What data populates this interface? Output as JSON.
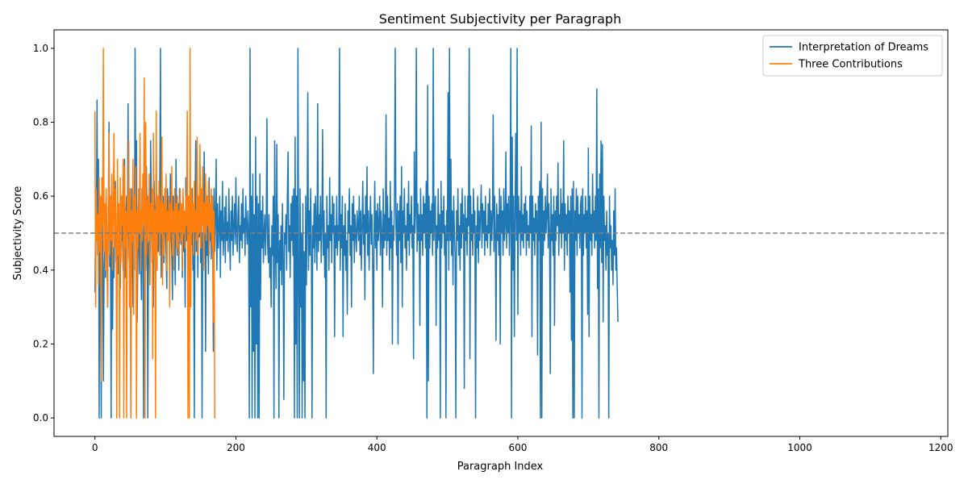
{
  "chart_data": {
    "type": "line",
    "title": "Sentiment Subjectivity per Paragraph",
    "xlabel": "Paragraph Index",
    "ylabel": "Subjectivity Score",
    "xlim": [
      -58,
      1210
    ],
    "ylim": [
      -0.05,
      1.05
    ],
    "xticks": [
      0,
      200,
      400,
      600,
      800,
      1000,
      1200
    ],
    "yticks": [
      0.0,
      0.2,
      0.4,
      0.6,
      0.8,
      1.0
    ],
    "reference_line": {
      "y": 0.5,
      "style": "dashed",
      "color": "#808080"
    },
    "legend": {
      "position": "top-right"
    },
    "series": [
      {
        "name": "Interpretation of Dreams",
        "color": "#1f77b4",
        "x_start": 0,
        "step": 1,
        "values": [
          0.34,
          0.55,
          0.48,
          0.86,
          0.44,
          0.7,
          0.0,
          0.58,
          0.3,
          0.0,
          0.65,
          0.45,
          0.1,
          0.4,
          0.52,
          0.38,
          0.6,
          0.45,
          0.3,
          0.55,
          0.8,
          0.41,
          0.5,
          0.0,
          0.58,
          0.24,
          0.46,
          0.38,
          0.52,
          0.64,
          0.42,
          0.5,
          0.47,
          0.39,
          0.56,
          0.44,
          0.35,
          0.6,
          0.48,
          0.52,
          0.4,
          0.45,
          0.7,
          0.38,
          0.55,
          0.6,
          0.43,
          0.85,
          0.5,
          0.36,
          0.58,
          0.0,
          0.62,
          0.45,
          0.3,
          0.55,
          0.4,
          1.0,
          0.52,
          0.75,
          0.26,
          0.48,
          0.6,
          0.39,
          0.56,
          0.44,
          0.32,
          0.62,
          0.5,
          0.0,
          0.58,
          0.45,
          0.4,
          0.68,
          0.53,
          0.0,
          0.47,
          0.5,
          0.36,
          0.75,
          0.6,
          0.42,
          0.55,
          0.3,
          0.64,
          0.48,
          0.52,
          0.7,
          0.4,
          0.58,
          0.45,
          0.5,
          0.62,
          1.0,
          0.38,
          0.55,
          0.47,
          0.6,
          0.42,
          0.51,
          0.56,
          0.44,
          0.35,
          0.62,
          0.49,
          0.58,
          0.4,
          0.66,
          0.5,
          0.45,
          0.32,
          0.6,
          0.54,
          0.48,
          0.36,
          0.7,
          0.52,
          0.44,
          0.58,
          0.4,
          0.62,
          0.5,
          0.47,
          0.56,
          0.38,
          0.6,
          0.45,
          0.53,
          0.3,
          0.65,
          0.48,
          0.55,
          0.42,
          0.6,
          0.5,
          0.44,
          0.58,
          0.47,
          0.62,
          0.4,
          0.52,
          0.0,
          0.56,
          0.75,
          0.45,
          0.6,
          0.38,
          0.54,
          0.49,
          0.68,
          0.42,
          0.58,
          0.0,
          0.5,
          0.47,
          0.72,
          0.55,
          0.18,
          0.6,
          0.44,
          0.52,
          0.39,
          0.65,
          0.48,
          0.56,
          0.43,
          0.6,
          0.5,
          0.18,
          0.62,
          0.45,
          0.54,
          0.7,
          0.4,
          0.58,
          0.46,
          0.52,
          0.6,
          0.38,
          0.56,
          0.48,
          0.64,
          0.44,
          0.5,
          0.57,
          0.42,
          0.6,
          0.48,
          0.53,
          0.45,
          0.62,
          0.5,
          0.4,
          0.56,
          0.48,
          0.6,
          0.44,
          0.52,
          0.58,
          0.47,
          0.65,
          0.5,
          0.45,
          0.55,
          0.6,
          0.42,
          0.52,
          0.48,
          0.58,
          0.46,
          0.62,
          0.5,
          0.54,
          0.44,
          0.6,
          0.52,
          0.47,
          0.56,
          0.5,
          0.0,
          1.0,
          0.3,
          0.6,
          0.0,
          0.66,
          0.18,
          0.55,
          0.0,
          0.76,
          0.2,
          0.6,
          0.0,
          0.58,
          0.0,
          0.66,
          0.32,
          0.56,
          0.46,
          0.6,
          0.42,
          0.5,
          0.55,
          0.44,
          0.52,
          0.81,
          0.47,
          0.42,
          0.55,
          0.38,
          0.46,
          0.3,
          0.52,
          0.44,
          0.6,
          0.0,
          0.75,
          0.48,
          0.35,
          0.74,
          0.42,
          0.55,
          0.0,
          0.48,
          0.4,
          0.52,
          0.36,
          0.58,
          0.44,
          0.05,
          0.5,
          0.47,
          0.55,
          0.4,
          0.6,
          0.72,
          0.45,
          0.52,
          0.38,
          0.58,
          0.48,
          0.6,
          0.44,
          0.62,
          0.0,
          0.76,
          0.2,
          0.6,
          0.0,
          1.0,
          0.4,
          0.0,
          0.62,
          0.3,
          0.5,
          0.0,
          0.58,
          0.1,
          0.45,
          0.0,
          0.6,
          0.36,
          0.52,
          0.88,
          0.4,
          0.56,
          0.44,
          0.62,
          0.48,
          0.0,
          0.52,
          0.46,
          0.58,
          0.42,
          0.6,
          0.5,
          0.4,
          0.85,
          0.45,
          0.55,
          0.48,
          0.6,
          0.42,
          0.52,
          0.78,
          0.44,
          0.56,
          0.38,
          0.5,
          0.0,
          0.6,
          0.46,
          0.52,
          0.4,
          0.65,
          0.48,
          0.55,
          0.42,
          0.6,
          0.5,
          0.58,
          0.22,
          0.52,
          0.46,
          0.6,
          0.44,
          0.52,
          0.48,
          1.0,
          0.4,
          0.55,
          0.46,
          0.6,
          0.22,
          0.52,
          0.44,
          0.58,
          0.4,
          0.48,
          0.28,
          0.56,
          0.5,
          0.62,
          0.44,
          0.52,
          0.3,
          0.58,
          0.48,
          0.6,
          0.42,
          0.55,
          0.5,
          0.45,
          0.56,
          0.52,
          0.48,
          0.6,
          0.44,
          0.56,
          0.4,
          0.52,
          0.64,
          0.47,
          0.55,
          0.32,
          0.6,
          0.5,
          0.68,
          0.44,
          0.56,
          0.4,
          0.52,
          0.6,
          0.47,
          0.55,
          0.42,
          0.12,
          0.5,
          0.64,
          0.46,
          0.56,
          0.4,
          0.58,
          0.48,
          0.52,
          0.6,
          0.44,
          0.56,
          0.5,
          0.3,
          0.62,
          0.46,
          0.55,
          0.48,
          0.82,
          0.44,
          0.6,
          0.48,
          0.54,
          0.4,
          0.64,
          0.46,
          0.56,
          0.2,
          0.52,
          0.48,
          0.6,
          1.0,
          0.52,
          0.44,
          0.58,
          0.2,
          0.56,
          0.48,
          0.6,
          0.42,
          0.68,
          0.3,
          0.56,
          0.5,
          0.62,
          0.46,
          0.52,
          0.4,
          0.58,
          0.48,
          0.64,
          0.44,
          0.55,
          0.5,
          0.6,
          0.46,
          0.52,
          0.16,
          0.72,
          0.5,
          0.56,
          1.0,
          0.45,
          0.58,
          0.48,
          0.55,
          0.25,
          0.62,
          0.48,
          0.55,
          0.44,
          0.6,
          0.5,
          0.58,
          0.46,
          0.64,
          0.0,
          0.9,
          0.1,
          0.6,
          0.46,
          0.56,
          0.5,
          0.58,
          0.44,
          1.0,
          0.48,
          0.55,
          0.6,
          0.25,
          0.52,
          0.46,
          0.62,
          0.48,
          0.55,
          0.0,
          0.64,
          0.46,
          0.56,
          0.5,
          0.6,
          0.44,
          0.52,
          0.0,
          0.56,
          0.48,
          0.88,
          0.4,
          1.0,
          0.48,
          0.7,
          0.44,
          0.56,
          0.36,
          0.6,
          0.5,
          0.44,
          0.0,
          0.56,
          0.48,
          0.62,
          0.44,
          0.52,
          0.4,
          0.58,
          0.46,
          0.62,
          0.5,
          0.55,
          0.08,
          0.6,
          0.48,
          0.54,
          0.44,
          0.6,
          0.52,
          1.0,
          0.16,
          0.6,
          0.48,
          0.55,
          0.44,
          0.62,
          0.5,
          0.56,
          0.0,
          0.52,
          0.46,
          0.6,
          0.42,
          0.56,
          0.48,
          0.55,
          0.63,
          0.46,
          0.58,
          0.5,
          0.56,
          0.44,
          0.6,
          0.48,
          0.52,
          0.46,
          0.58,
          0.5,
          0.62,
          0.44,
          0.56,
          0.48,
          0.55,
          0.82,
          0.45,
          0.6,
          0.5,
          0.21,
          0.58,
          0.48,
          0.55,
          0.44,
          0.62,
          0.2,
          0.6,
          0.5,
          0.56,
          0.44,
          0.62,
          0.48,
          0.52,
          0.72,
          0.46,
          0.58,
          0.5,
          0.6,
          0.44,
          0.56,
          1.0,
          0.0,
          0.76,
          0.4,
          0.6,
          0.22,
          0.55,
          0.77,
          0.48,
          1.0,
          0.28,
          0.6,
          0.5,
          0.56,
          0.44,
          0.68,
          0.48,
          0.55,
          0.46,
          0.58,
          0.5,
          0.6,
          0.44,
          0.56,
          0.48,
          0.52,
          0.46,
          0.6,
          0.5,
          0.79,
          0.22,
          0.6,
          0.48,
          0.54,
          0.44,
          0.58,
          0.5,
          0.56,
          0.17,
          0.6,
          0.48,
          0.64,
          0.0,
          0.8,
          0.0,
          0.62,
          0.44,
          0.56,
          0.48,
          0.6,
          0.5,
          0.55,
          0.66,
          0.46,
          0.58,
          0.5,
          0.12,
          0.62,
          0.48,
          0.55,
          0.44,
          0.6,
          0.25,
          0.56,
          0.48,
          0.6,
          0.52,
          0.69,
          0.44,
          0.55,
          0.5,
          0.62,
          0.46,
          0.58,
          0.5,
          0.75,
          0.4,
          0.58,
          0.48,
          0.55,
          0.44,
          0.6,
          0.5,
          0.56,
          0.34,
          0.6,
          0.21,
          0.62,
          0.0,
          0.64,
          0.0,
          0.56,
          0.48,
          0.62,
          0.44,
          0.6,
          0.5,
          0.55,
          0.46,
          0.58,
          0.6,
          0.0,
          0.62,
          0.44,
          0.55,
          0.5,
          0.6,
          0.46,
          0.56,
          0.28,
          0.73,
          0.22,
          0.6,
          0.48,
          0.55,
          0.44,
          0.66,
          0.5,
          0.56,
          0.46,
          0.6,
          0.48,
          0.89,
          0.35,
          0.62,
          0.0,
          0.66,
          0.46,
          0.75,
          0.42,
          0.74,
          0.26,
          0.6,
          0.48,
          0.52,
          0.4,
          0.56,
          0.44,
          0.5,
          0.0,
          0.6,
          0.46,
          0.52,
          0.4,
          0.48,
          0.36,
          0.56,
          0.44,
          0.62,
          0.4,
          0.46,
          0.35,
          0.26
        ]
      },
      {
        "name": "Three Contributions",
        "color": "#ff7f0e",
        "x_start": 0,
        "step": 1,
        "values": [
          0.83,
          0.3,
          0.62,
          0.48,
          0.55,
          0.36,
          0.65,
          0.45,
          0.6,
          0.1,
          0.65,
          0.52,
          1.0,
          0.45,
          0.58,
          0.4,
          0.62,
          0.5,
          0.3,
          0.56,
          0.77,
          0.44,
          0.6,
          0.48,
          0.66,
          0.4,
          0.55,
          0.77,
          0.46,
          0.62,
          0.52,
          0.0,
          0.7,
          0.44,
          0.58,
          0.0,
          0.65,
          0.42,
          0.6,
          0.52,
          0.7,
          0.0,
          0.68,
          0.46,
          0.56,
          0.0,
          0.6,
          0.5,
          0.75,
          0.3,
          0.62,
          0.0,
          0.56,
          0.48,
          0.7,
          0.28,
          0.6,
          0.5,
          0.68,
          0.0,
          0.56,
          0.46,
          0.62,
          0.5,
          0.77,
          0.4,
          0.56,
          0.48,
          0.66,
          0.52,
          0.92,
          0.0,
          0.8,
          0.44,
          0.56,
          0.6,
          0.48,
          0.66,
          0.36,
          0.58,
          0.5,
          0.62,
          0.16,
          0.77,
          0.44,
          0.56,
          0.0,
          0.83,
          0.4,
          0.6,
          0.5,
          0.64,
          0.44,
          0.58,
          0.5,
          0.76,
          0.36,
          0.58,
          0.44,
          0.62,
          0.5,
          0.66,
          0.4,
          0.56,
          0.48,
          0.6,
          0.3,
          0.58,
          0.5,
          0.68,
          0.44,
          0.56,
          0.4,
          0.62,
          0.5,
          0.58,
          0.46,
          0.6,
          0.44,
          0.56,
          0.5,
          0.62,
          0.48,
          0.58,
          0.4,
          0.62,
          0.5,
          0.56,
          0.46,
          0.6,
          0.52,
          0.83,
          0.0,
          0.6,
          0.0,
          1.0,
          0.3,
          0.62,
          0.5,
          0.58,
          0.44,
          0.64,
          0.5,
          0.56,
          0.48,
          0.76,
          0.44,
          0.6,
          0.5,
          0.74,
          0.46,
          0.62,
          0.52,
          0.68,
          0.4,
          0.58,
          0.5,
          0.66,
          0.48,
          0.6,
          0.52,
          0.64,
          0.44,
          0.58,
          0.5,
          0.62,
          0.46,
          0.6,
          0.26,
          0.56,
          0.0,
          0.0
        ]
      }
    ]
  }
}
